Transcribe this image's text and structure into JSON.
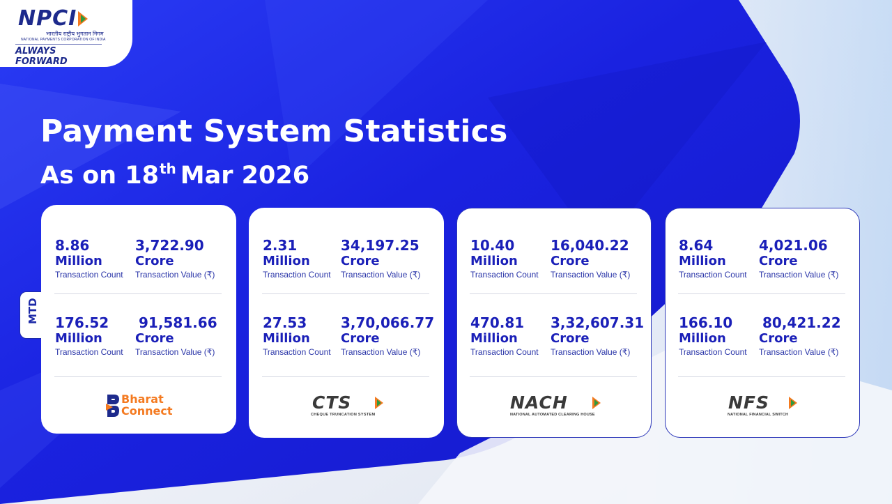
{
  "logo": {
    "name": "NPCI",
    "hindi": "भारतीय राष्ट्रीय भुगतान निगम",
    "full_name": "NATIONAL PAYMENTS CORPORATION OF INDIA",
    "tagline": "ALWAYS FORWARD"
  },
  "header": {
    "title": "Payment System Statistics",
    "date_prefix": "As on 18",
    "date_sup": "th",
    "date_suffix": "Mar 2026"
  },
  "mtd_label": "MTD",
  "labels": {
    "count": "Transaction Count",
    "value": "Transaction Value (₹)",
    "million": "Million",
    "crore": "Crore"
  },
  "cards": [
    {
      "brand": "Bharat Connect",
      "brand_line1": "Bharat",
      "brand_line2": "Connect",
      "day": {
        "count": "8.86",
        "value": "3,722.90"
      },
      "mtd": {
        "count": "176.52",
        "value": "91,581.66"
      }
    },
    {
      "brand": "CTS",
      "brand_sub": "CHEQUE TRUNCATION SYSTEM",
      "day": {
        "count": "2.31",
        "value": "34,197.25"
      },
      "mtd": {
        "count": "27.53",
        "value": "3,70,066.77"
      }
    },
    {
      "brand": "NACH",
      "brand_sub": "NATIONAL AUTOMATED CLEARING HOUSE",
      "day": {
        "count": "10.40",
        "value": "16,040.22"
      },
      "mtd": {
        "count": "470.81",
        "value": "3,32,607.31"
      }
    },
    {
      "brand": "NFS",
      "brand_sub": "NATIONAL FINANCIAL SWITCH",
      "day": {
        "count": "8.64",
        "value": "4,021.06"
      },
      "mtd": {
        "count": "166.10",
        "value": "80,421.22"
      }
    }
  ],
  "colors": {
    "primary_blue": "#1a1fb8",
    "background_blue": "#1b24e6",
    "accent_orange": "#f47a20",
    "accent_green": "#2e9a3e"
  }
}
